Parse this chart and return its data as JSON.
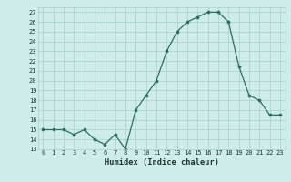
{
  "x": [
    0,
    1,
    2,
    3,
    4,
    5,
    6,
    7,
    8,
    9,
    10,
    11,
    12,
    13,
    14,
    15,
    16,
    17,
    18,
    19,
    20,
    21,
    22,
    23
  ],
  "y": [
    15,
    15,
    15,
    14.5,
    15,
    14,
    13.5,
    14.5,
    13,
    17,
    18.5,
    20,
    23,
    25,
    26,
    26.5,
    27,
    27,
    26,
    21.5,
    18.5,
    18,
    16.5,
    16.5
  ],
  "xlabel": "Humidex (Indice chaleur)",
  "ylim": [
    13,
    27.5
  ],
  "xlim": [
    -0.5,
    23.5
  ],
  "yticks": [
    13,
    14,
    15,
    16,
    17,
    18,
    19,
    20,
    21,
    22,
    23,
    24,
    25,
    26,
    27
  ],
  "xticks": [
    0,
    1,
    2,
    3,
    4,
    5,
    6,
    7,
    8,
    9,
    10,
    11,
    12,
    13,
    14,
    15,
    16,
    17,
    18,
    19,
    20,
    21,
    22,
    23
  ],
  "line_color": "#2d6e5f",
  "bg_color": "#ceecea",
  "grid_color": "#a8ceca",
  "tick_label_color": "#1a3530",
  "xlabel_color": "#1a3530"
}
